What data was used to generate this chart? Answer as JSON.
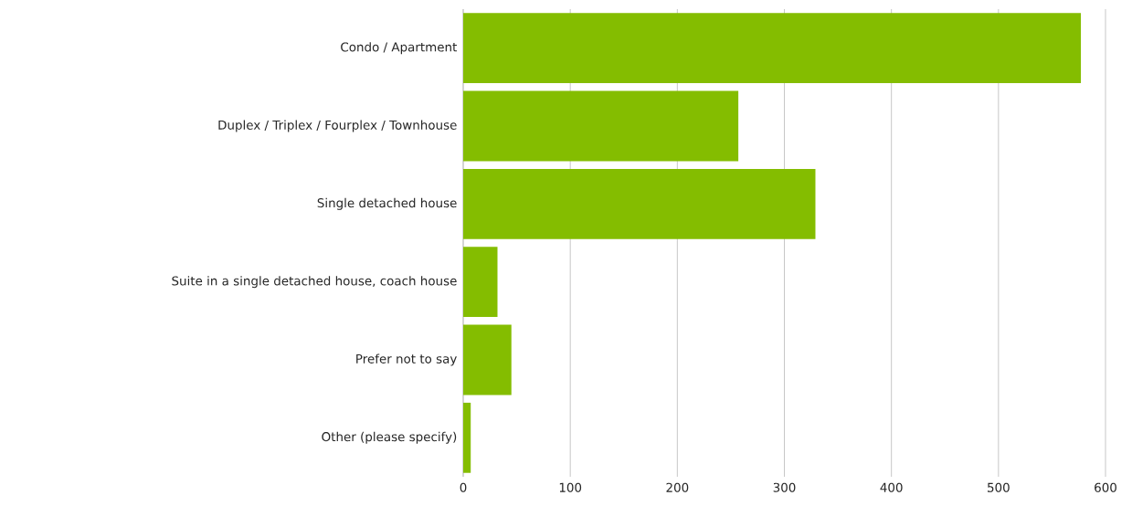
{
  "chart_data": {
    "type": "bar",
    "orientation": "horizontal",
    "categories": [
      "Condo / Apartment",
      "Duplex / Triplex / Fourplex / Townhouse",
      "Single detached house",
      "Suite in a single detached house, coach house",
      "Prefer not to say",
      "Other (please specify)"
    ],
    "values": [
      577,
      257,
      329,
      32,
      45,
      7
    ],
    "color": "#84bd00",
    "xlim": [
      0,
      600
    ],
    "xticks": [
      0,
      100,
      200,
      300,
      400,
      500,
      600
    ],
    "grid": "x"
  }
}
